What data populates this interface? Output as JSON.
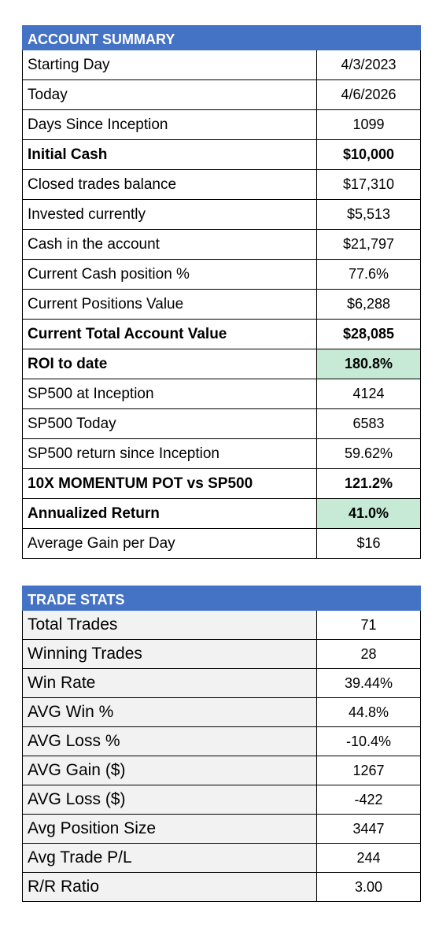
{
  "account_summary": {
    "title": "ACCOUNT SUMMARY",
    "rows": [
      {
        "label": "Starting Day",
        "value": "4/3/2023"
      },
      {
        "label": "Today",
        "value": "4/6/2026"
      },
      {
        "label": "Days Since Inception",
        "value": "1099"
      },
      {
        "label": "Initial Cash",
        "value": "$10,000"
      },
      {
        "label": "Closed trades balance",
        "value": "$17,310"
      },
      {
        "label": "Invested currently",
        "value": "$5,513"
      },
      {
        "label": "Cash in the account",
        "value": "$21,797"
      },
      {
        "label": "Current Cash position %",
        "value": "77.6%"
      },
      {
        "label": "Current Positions Value",
        "value": "$6,288"
      },
      {
        "label": "Current Total Account Value",
        "value": "$28,085"
      },
      {
        "label": "ROI to date",
        "value": "180.8%"
      },
      {
        "label": "SP500 at Inception",
        "value": "4124"
      },
      {
        "label": "SP500 Today",
        "value": "6583"
      },
      {
        "label": "SP500 return since Inception",
        "value": "59.62%"
      },
      {
        "label": "10X MOMENTUM POT vs SP500",
        "value": "121.2%"
      },
      {
        "label": "Annualized Return",
        "value": "41.0%"
      },
      {
        "label": "Average Gain per Day",
        "value": "$16"
      }
    ]
  },
  "trade_stats": {
    "title": "TRADE STATS",
    "rows": [
      {
        "label": "Total Trades",
        "value": "71"
      },
      {
        "label": "Winning Trades",
        "value": "28"
      },
      {
        "label": "Win Rate",
        "value": "39.44%"
      },
      {
        "label": "AVG Win %",
        "value": "44.8%"
      },
      {
        "label": "AVG Loss %",
        "value": "-10.4%"
      },
      {
        "label": "AVG Gain ($)",
        "value": "1267"
      },
      {
        "label": "AVG Loss ($)",
        "value": "-422"
      },
      {
        "label": "Avg Position Size",
        "value": "3447"
      },
      {
        "label": "Avg Trade P/L",
        "value": "244"
      },
      {
        "label": "R/R Ratio",
        "value": "3.00"
      }
    ]
  },
  "colors": {
    "header_bg": "#4472C4",
    "highlight_bg": "#C6EAD5",
    "label_shade_bg": "#F2F2F2"
  }
}
